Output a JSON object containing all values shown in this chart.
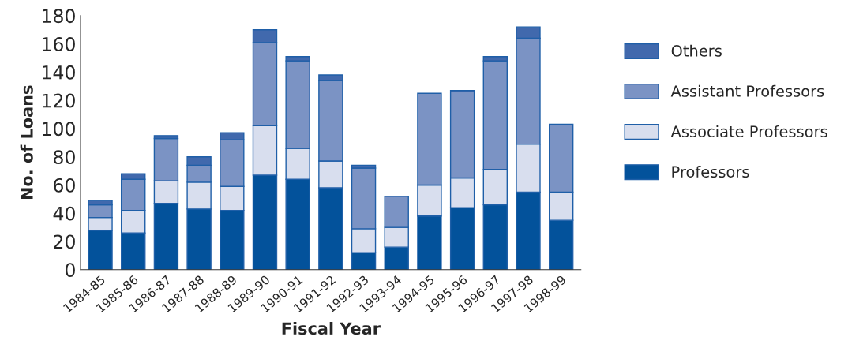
{
  "chart_data": {
    "type": "bar",
    "stacked": true,
    "xlabel": "Fiscal Year",
    "ylabel": "No. of Loans",
    "categories": [
      "1984-85",
      "1985-86",
      "1986-87",
      "1987-88",
      "1988-89",
      "1989-90",
      "1990-91",
      "1991-92",
      "1992-93",
      "1993-94",
      "1994-95",
      "1995-96",
      "1996-97",
      "1997-98",
      "1998-99"
    ],
    "series": [
      {
        "name": "Professors",
        "color": "#03529b",
        "values": [
          28,
          26,
          47,
          43,
          42,
          67,
          64,
          58,
          12,
          16,
          38,
          44,
          46,
          55,
          35
        ]
      },
      {
        "name": "Associate Professors",
        "color": "#d8deee",
        "values": [
          9,
          16,
          16,
          19,
          17,
          35,
          22,
          19,
          17,
          14,
          22,
          21,
          25,
          34,
          20
        ]
      },
      {
        "name": "Assistant Professors",
        "color": "#7b93c4",
        "values": [
          9,
          22,
          30,
          12,
          33,
          59,
          62,
          57,
          43,
          22,
          65,
          61,
          77,
          75,
          48
        ]
      },
      {
        "name": "Others",
        "color": "#4169ad",
        "values": [
          3,
          4,
          2,
          6,
          5,
          9,
          3,
          4,
          2,
          0,
          0,
          1,
          3,
          8,
          0
        ]
      }
    ],
    "ylim": [
      0,
      180
    ],
    "yticks": [
      0,
      20,
      40,
      60,
      80,
      100,
      120,
      140,
      160,
      180
    ],
    "grid": false,
    "legend": "right"
  }
}
